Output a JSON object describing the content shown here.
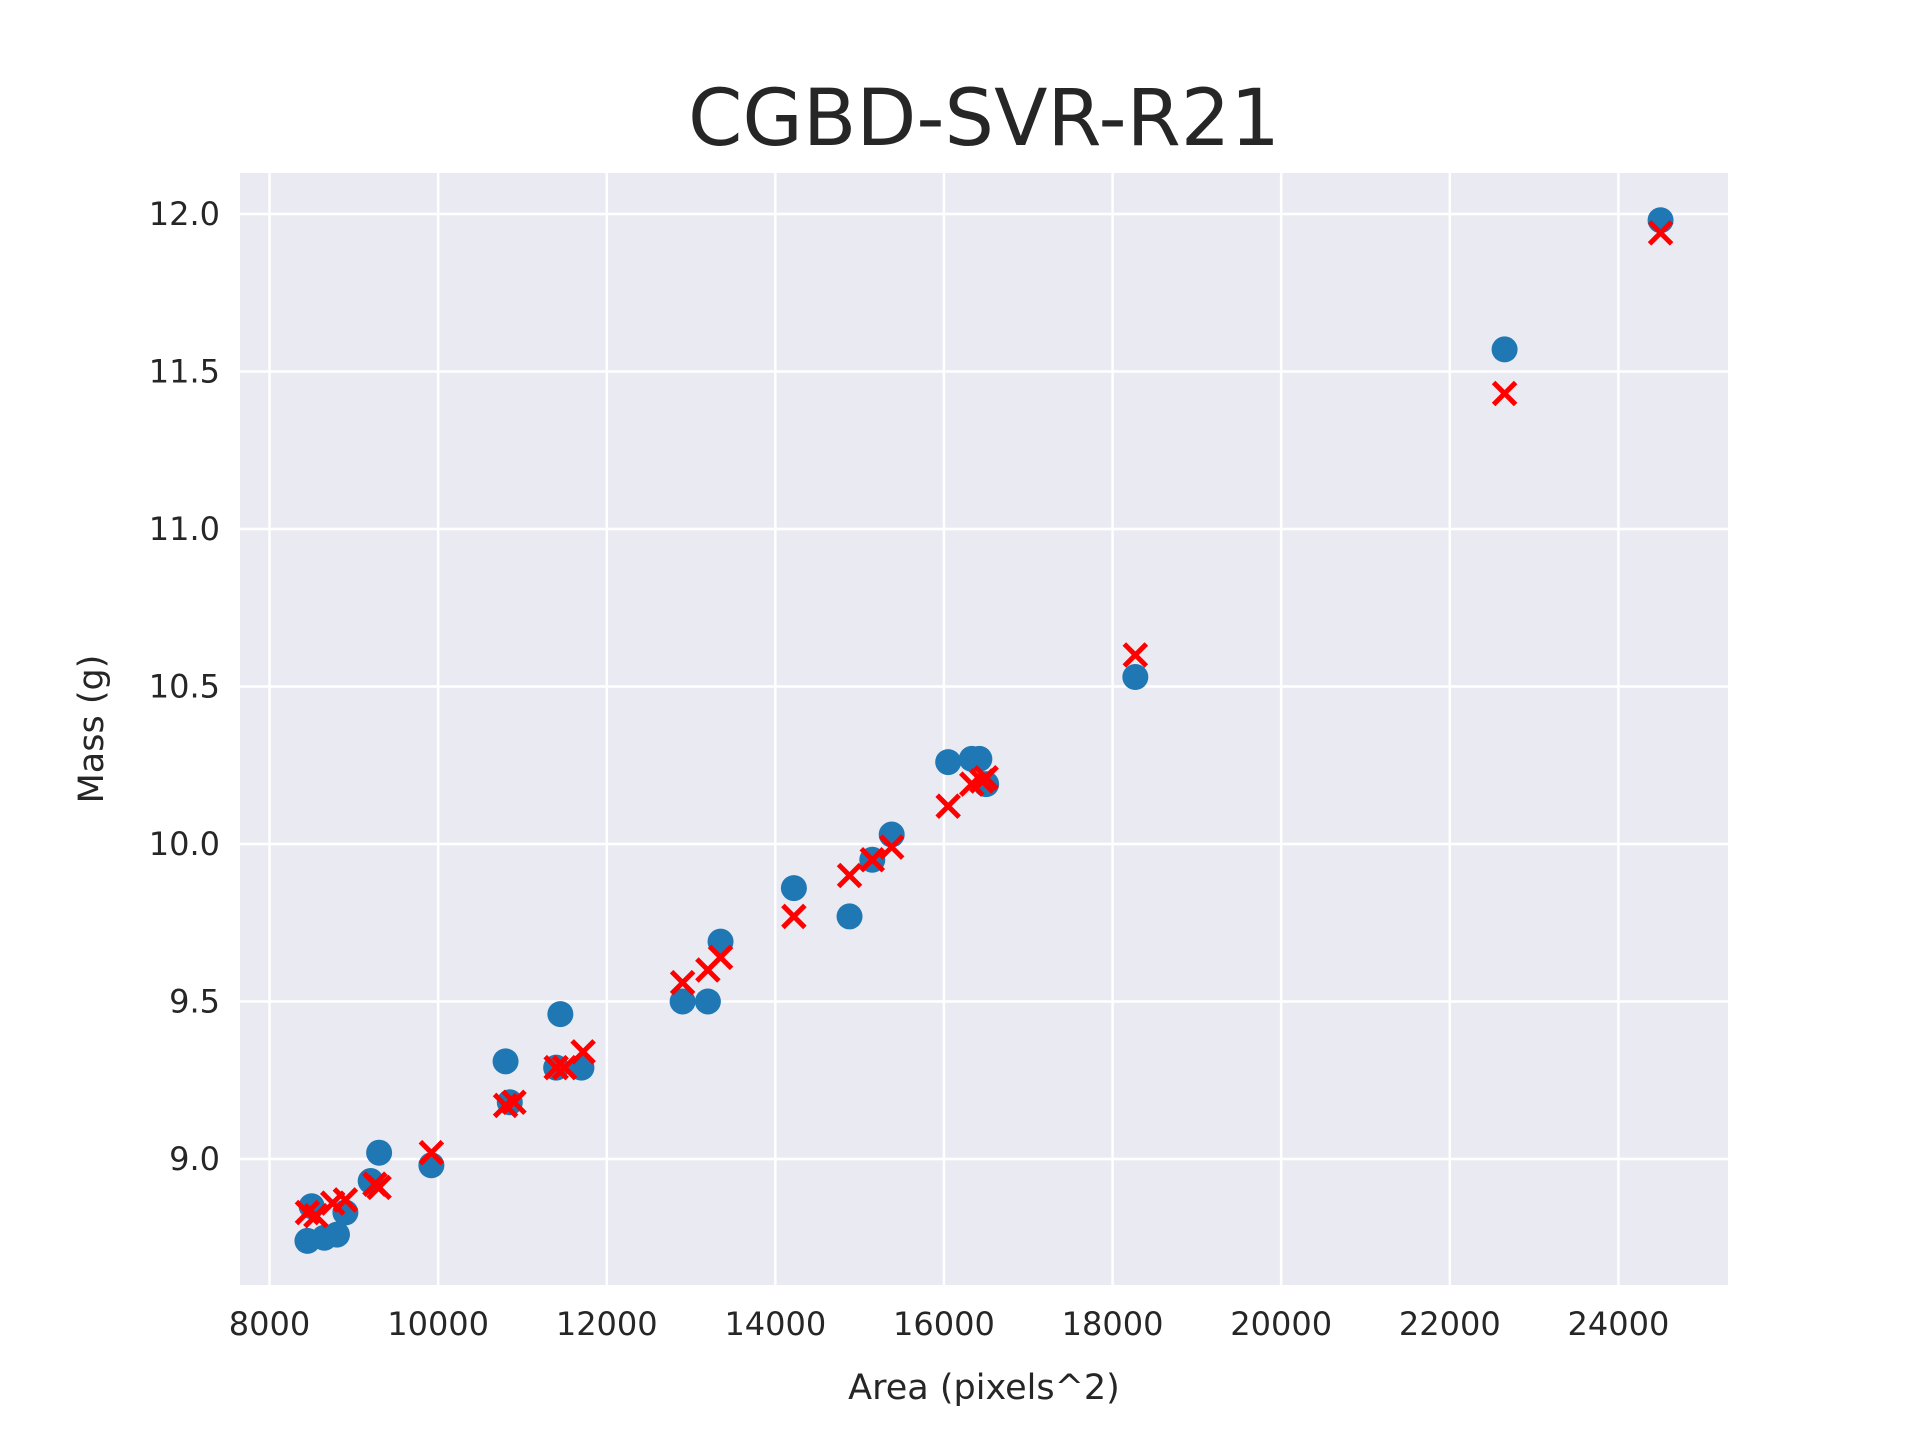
{
  "chart_data": {
    "type": "scatter",
    "title": "CGBD-SVR-R21",
    "xlabel": "Area (pixels^2)",
    "ylabel": "Mass (g)",
    "xlim": [
      7650,
      25300
    ],
    "ylim": [
      8.6,
      12.13
    ],
    "xticks": [
      8000,
      10000,
      12000,
      14000,
      16000,
      18000,
      20000,
      22000,
      24000
    ],
    "yticks": [
      9.0,
      9.5,
      10.0,
      10.5,
      11.0,
      11.5,
      12.0
    ],
    "grid": true,
    "colors": {
      "background": "#eaeaf2",
      "grid": "#ffffff",
      "actual": "#1f77b4",
      "predicted": "#ff0000"
    },
    "series": [
      {
        "marker": "circle",
        "points": [
          [
            8450,
            8.74
          ],
          [
            8500,
            8.85
          ],
          [
            8650,
            8.75
          ],
          [
            8800,
            8.76
          ],
          [
            8900,
            8.83
          ],
          [
            9200,
            8.93
          ],
          [
            9300,
            9.02
          ],
          [
            9920,
            8.98
          ],
          [
            10800,
            9.31
          ],
          [
            10850,
            9.18
          ],
          [
            11400,
            9.29
          ],
          [
            11450,
            9.46
          ],
          [
            11700,
            9.29
          ],
          [
            12900,
            9.5
          ],
          [
            13200,
            9.5
          ],
          [
            13350,
            9.69
          ],
          [
            14220,
            9.86
          ],
          [
            14880,
            9.77
          ],
          [
            15150,
            9.95
          ],
          [
            15380,
            10.03
          ],
          [
            16050,
            10.26
          ],
          [
            16330,
            10.27
          ],
          [
            16420,
            10.27
          ],
          [
            16500,
            10.19
          ],
          [
            18270,
            10.53
          ],
          [
            22650,
            11.57
          ],
          [
            24500,
            11.98
          ]
        ]
      },
      {
        "marker": "x",
        "points": [
          [
            8450,
            8.83
          ],
          [
            8550,
            8.82
          ],
          [
            8750,
            8.86
          ],
          [
            8900,
            8.87
          ],
          [
            9250,
            8.92
          ],
          [
            9300,
            8.91
          ],
          [
            9920,
            9.02
          ],
          [
            10800,
            9.17
          ],
          [
            10900,
            9.18
          ],
          [
            11400,
            9.29
          ],
          [
            11500,
            9.29
          ],
          [
            11720,
            9.34
          ],
          [
            12900,
            9.56
          ],
          [
            13200,
            9.6
          ],
          [
            13350,
            9.64
          ],
          [
            14220,
            9.77
          ],
          [
            14880,
            9.9
          ],
          [
            15150,
            9.95
          ],
          [
            15380,
            9.99
          ],
          [
            16050,
            10.12
          ],
          [
            16330,
            10.19
          ],
          [
            16450,
            10.2
          ],
          [
            16500,
            10.21
          ],
          [
            18270,
            10.6
          ],
          [
            22650,
            11.43
          ],
          [
            24500,
            11.94
          ]
        ]
      }
    ]
  }
}
